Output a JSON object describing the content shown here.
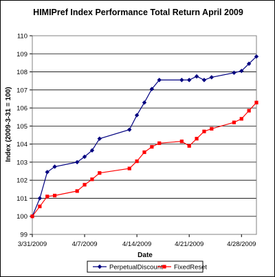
{
  "chart_data": {
    "type": "line",
    "title": "HIMIPref Index Performance Total Return April 2009",
    "xlabel": "Date",
    "ylabel": "Index (2009-3-31 = 100)",
    "ylim": [
      99,
      110
    ],
    "y_ticks": [
      "99",
      "100",
      "101",
      "102",
      "103",
      "104",
      "105",
      "106",
      "107",
      "108",
      "109",
      "110"
    ],
    "xlim": [
      "2009-03-31",
      "2009-04-30"
    ],
    "x_ticks": [
      {
        "date": "2009-03-31",
        "label": "3/31/2009"
      },
      {
        "date": "2009-04-07",
        "label": "4/7/2009"
      },
      {
        "date": "2009-04-14",
        "label": "4/14/2009"
      },
      {
        "date": "2009-04-21",
        "label": "4/21/2009"
      },
      {
        "date": "2009-04-28",
        "label": "4/28/2009"
      }
    ],
    "grid": "horizontal",
    "legend_position": "bottom",
    "series": [
      {
        "name": "PerpetualDiscount",
        "color": "#000080",
        "marker": "diamond",
        "x": [
          "2009-03-31",
          "2009-04-01",
          "2009-04-02",
          "2009-04-03",
          "2009-04-06",
          "2009-04-07",
          "2009-04-08",
          "2009-04-09",
          "2009-04-13",
          "2009-04-14",
          "2009-04-15",
          "2009-04-16",
          "2009-04-17",
          "2009-04-20",
          "2009-04-21",
          "2009-04-22",
          "2009-04-23",
          "2009-04-24",
          "2009-04-27",
          "2009-04-28",
          "2009-04-29",
          "2009-04-30"
        ],
        "values": [
          100.0,
          101.0,
          102.45,
          102.75,
          103.0,
          103.3,
          103.65,
          104.3,
          104.8,
          105.6,
          106.3,
          107.05,
          107.55,
          107.55,
          107.55,
          107.75,
          107.55,
          107.7,
          107.95,
          108.05,
          108.45,
          108.85
        ]
      },
      {
        "name": "FixedReset",
        "color": "#ff0000",
        "marker": "square",
        "x": [
          "2009-03-31",
          "2009-04-01",
          "2009-04-02",
          "2009-04-03",
          "2009-04-06",
          "2009-04-07",
          "2009-04-08",
          "2009-04-09",
          "2009-04-13",
          "2009-04-14",
          "2009-04-15",
          "2009-04-16",
          "2009-04-17",
          "2009-04-20",
          "2009-04-21",
          "2009-04-22",
          "2009-04-23",
          "2009-04-24",
          "2009-04-27",
          "2009-04-28",
          "2009-04-29",
          "2009-04-30"
        ],
        "values": [
          100.0,
          100.55,
          101.1,
          101.15,
          101.4,
          101.75,
          102.05,
          102.4,
          102.65,
          103.05,
          103.55,
          103.85,
          104.05,
          104.15,
          103.9,
          104.3,
          104.7,
          104.85,
          105.2,
          105.4,
          105.85,
          106.3
        ]
      }
    ]
  }
}
